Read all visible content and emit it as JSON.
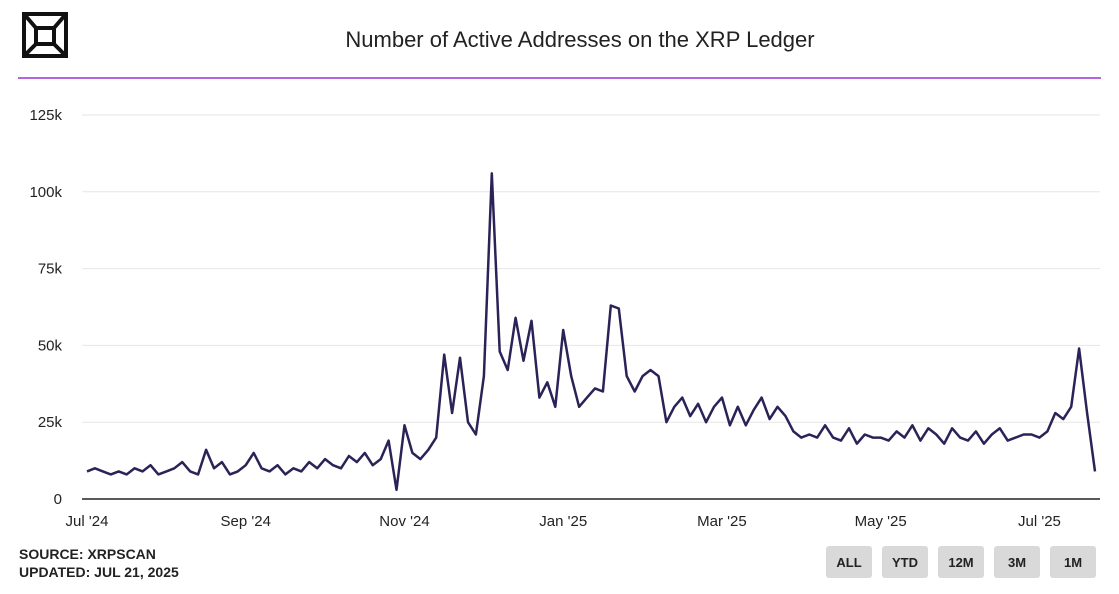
{
  "chart_data": {
    "type": "line",
    "title": "Number of Active Addresses on the XRP Ledger",
    "source": "SOURCE: XRPSCAN",
    "updated": "UPDATED: JUL 21, 2025",
    "buttons": [
      "ALL",
      "YTD",
      "12M",
      "3M",
      "1M"
    ],
    "color": "#2b2257",
    "grid": true,
    "categories": [
      "Jul '24",
      null,
      null,
      null,
      null,
      null,
      null,
      null,
      null,
      null,
      null,
      null,
      null,
      null,
      null,
      null,
      null,
      null,
      null,
      null,
      "Sep '24",
      null,
      null,
      null,
      null,
      null,
      null,
      null,
      null,
      null,
      null,
      null,
      null,
      null,
      null,
      null,
      null,
      null,
      null,
      null,
      "Nov '24",
      null,
      null,
      null,
      null,
      null,
      null,
      null,
      null,
      null,
      null,
      null,
      null,
      null,
      null,
      null,
      null,
      null,
      null,
      null,
      "Jan '25",
      null,
      null,
      null,
      null,
      null,
      null,
      null,
      null,
      null,
      null,
      null,
      null,
      null,
      null,
      null,
      null,
      null,
      null,
      null,
      "Mar '25",
      null,
      null,
      null,
      null,
      null,
      null,
      null,
      null,
      null,
      null,
      null,
      null,
      null,
      null,
      null,
      null,
      null,
      null,
      null,
      "May '25",
      null,
      null,
      null,
      null,
      null,
      null,
      null,
      null,
      null,
      null,
      null,
      null,
      null,
      null,
      null,
      null,
      null,
      null,
      null,
      "Jul '25",
      null,
      null,
      null,
      null,
      null,
      null,
      null
    ],
    "values": [
      9000,
      10000,
      9000,
      8000,
      9000,
      8000,
      10000,
      9000,
      11000,
      8000,
      9000,
      10000,
      12000,
      9000,
      8000,
      16000,
      10000,
      12000,
      8000,
      9000,
      11000,
      15000,
      10000,
      9000,
      11000,
      8000,
      10000,
      9000,
      12000,
      10000,
      13000,
      11000,
      10000,
      14000,
      12000,
      15000,
      11000,
      13000,
      19000,
      3000,
      24000,
      15000,
      13000,
      16000,
      20000,
      47000,
      28000,
      46000,
      25000,
      21000,
      40000,
      106000,
      48000,
      42000,
      59000,
      45000,
      58000,
      33000,
      38000,
      30000,
      55000,
      40000,
      30000,
      33000,
      36000,
      35000,
      63000,
      62000,
      40000,
      35000,
      40000,
      42000,
      40000,
      25000,
      30000,
      33000,
      27000,
      31000,
      25000,
      30000,
      33000,
      24000,
      30000,
      24000,
      29000,
      33000,
      26000,
      30000,
      27000,
      22000,
      20000,
      21000,
      20000,
      24000,
      20000,
      19000,
      23000,
      18000,
      21000,
      20000,
      20000,
      19000,
      22000,
      20000,
      24000,
      19000,
      23000,
      21000,
      18000,
      23000,
      20000,
      19000,
      22000,
      18000,
      21000,
      23000,
      19000,
      20000,
      21000,
      21000,
      20000,
      22000,
      28000,
      26000,
      30000,
      49000,
      28000,
      9000
    ],
    "ylim": [
      0,
      125000
    ],
    "yticks": [
      0,
      {
        "value": 25000,
        "label": "25k"
      },
      {
        "value": 50000,
        "label": "50k"
      },
      {
        "value": 75000,
        "label": "75k"
      },
      {
        "value": 100000,
        "label": "100k"
      },
      {
        "value": 125000,
        "label": "125k"
      }
    ]
  }
}
